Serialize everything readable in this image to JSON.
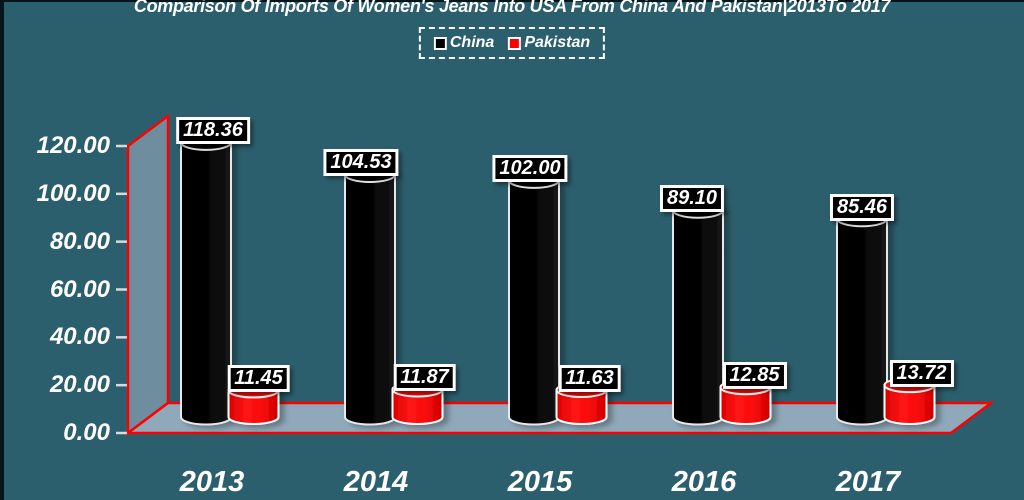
{
  "title": "Comparison Of Imports Of Women's Jeans Into USA From China And Pakistan|2013To 2017",
  "legend": {
    "items": [
      {
        "label": "China",
        "color": "#000000"
      },
      {
        "label": "Pakistan",
        "color": "#ff0000"
      }
    ]
  },
  "y_axis_labels": [
    "120.00",
    "100.00",
    "80.00",
    "60.00",
    "40.00",
    "20.00",
    "0.00"
  ],
  "x_axis_labels": [
    "2013",
    "2014",
    "2015",
    "2016",
    "2017"
  ],
  "chart_data": {
    "type": "bar",
    "subtype": "3d-cylinder",
    "title": "Comparison Of Imports Of Women's Jeans Into USA From China And Pakistan|2013To 2017",
    "categories": [
      "2013",
      "2014",
      "2015",
      "2016",
      "2017"
    ],
    "series": [
      {
        "name": "China",
        "color": "#000000",
        "values": [
          118.36,
          104.53,
          102.0,
          89.1,
          85.46
        ],
        "data_labels": [
          "118.36",
          "104.53",
          "102.00",
          "89.10",
          "85.46"
        ]
      },
      {
        "name": "Pakistan",
        "color": "#ff0000",
        "values": [
          11.45,
          11.87,
          11.63,
          12.85,
          13.72
        ],
        "data_labels": [
          "11.45",
          "11.87",
          "11.63",
          "12.85",
          "13.72"
        ]
      }
    ],
    "ylim": [
      0,
      120
    ],
    "y_tick_step": 20,
    "grid": false,
    "legend_position": "top",
    "background_color": "#2c5f6d",
    "wall_color": "#6e8e9f",
    "floor_color": "#8fa9ba",
    "axis_color": "#ff0000"
  }
}
